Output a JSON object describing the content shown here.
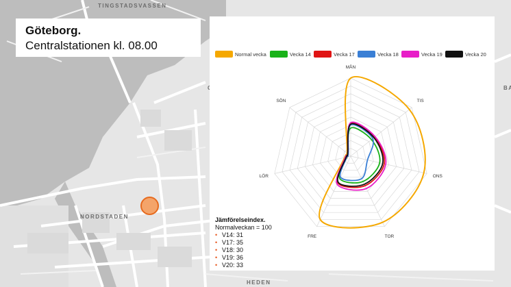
{
  "map": {
    "labels": {
      "tingstadsvassen": "TINGSTADSVASSEN",
      "nordstaden": "NORDSTADEN",
      "heden": "HEDEN",
      "edge_g": "G",
      "edge_ba": "BA"
    },
    "colors": {
      "water": "#bdbdbd",
      "land": "#e6e6e6",
      "road": "#ffffff"
    }
  },
  "title": {
    "city": "Göteborg.",
    "subtitle": "Centralstationen  kl. 08.00"
  },
  "marker": {
    "fill": "#f4a46a",
    "stroke": "#e66a1e"
  },
  "comparison": {
    "heading": "Jämförelseindex.",
    "baseline": "Normalveckan = 100",
    "items": [
      "V14: 31",
      "V17: 35",
      "V18: 30",
      "V19: 36",
      "V20: 33"
    ]
  },
  "chart_data": {
    "type": "radar",
    "axes": [
      "MÅN",
      "TIS",
      "ONS",
      "TOR",
      "FRE",
      "LÖR",
      "SÖN"
    ],
    "rlim": [
      0,
      100
    ],
    "grid_rings": 10,
    "legend_position": "top",
    "series": [
      {
        "name": "Normal vecka",
        "color": "#f5a800",
        "values": [
          100,
          96,
          96,
          94,
          90,
          8,
          6
        ]
      },
      {
        "name": "Vecka 14",
        "color": "#19b219",
        "values": [
          36,
          34,
          38,
          36,
          32,
          6,
          5
        ]
      },
      {
        "name": "Vecka 17",
        "color": "#e01414",
        "values": [
          42,
          39,
          44,
          42,
          38,
          7,
          5
        ]
      },
      {
        "name": "Vecka 18",
        "color": "#3a7fd5",
        "values": [
          40,
          36,
          22,
          32,
          30,
          5,
          4
        ]
      },
      {
        "name": "Vecka 19",
        "color": "#e81ec8",
        "values": [
          43,
          40,
          46,
          46,
          40,
          7,
          5
        ]
      },
      {
        "name": "Vecka 20",
        "color": "#111111",
        "values": [
          41,
          38,
          42,
          40,
          37,
          6,
          5
        ]
      }
    ]
  }
}
